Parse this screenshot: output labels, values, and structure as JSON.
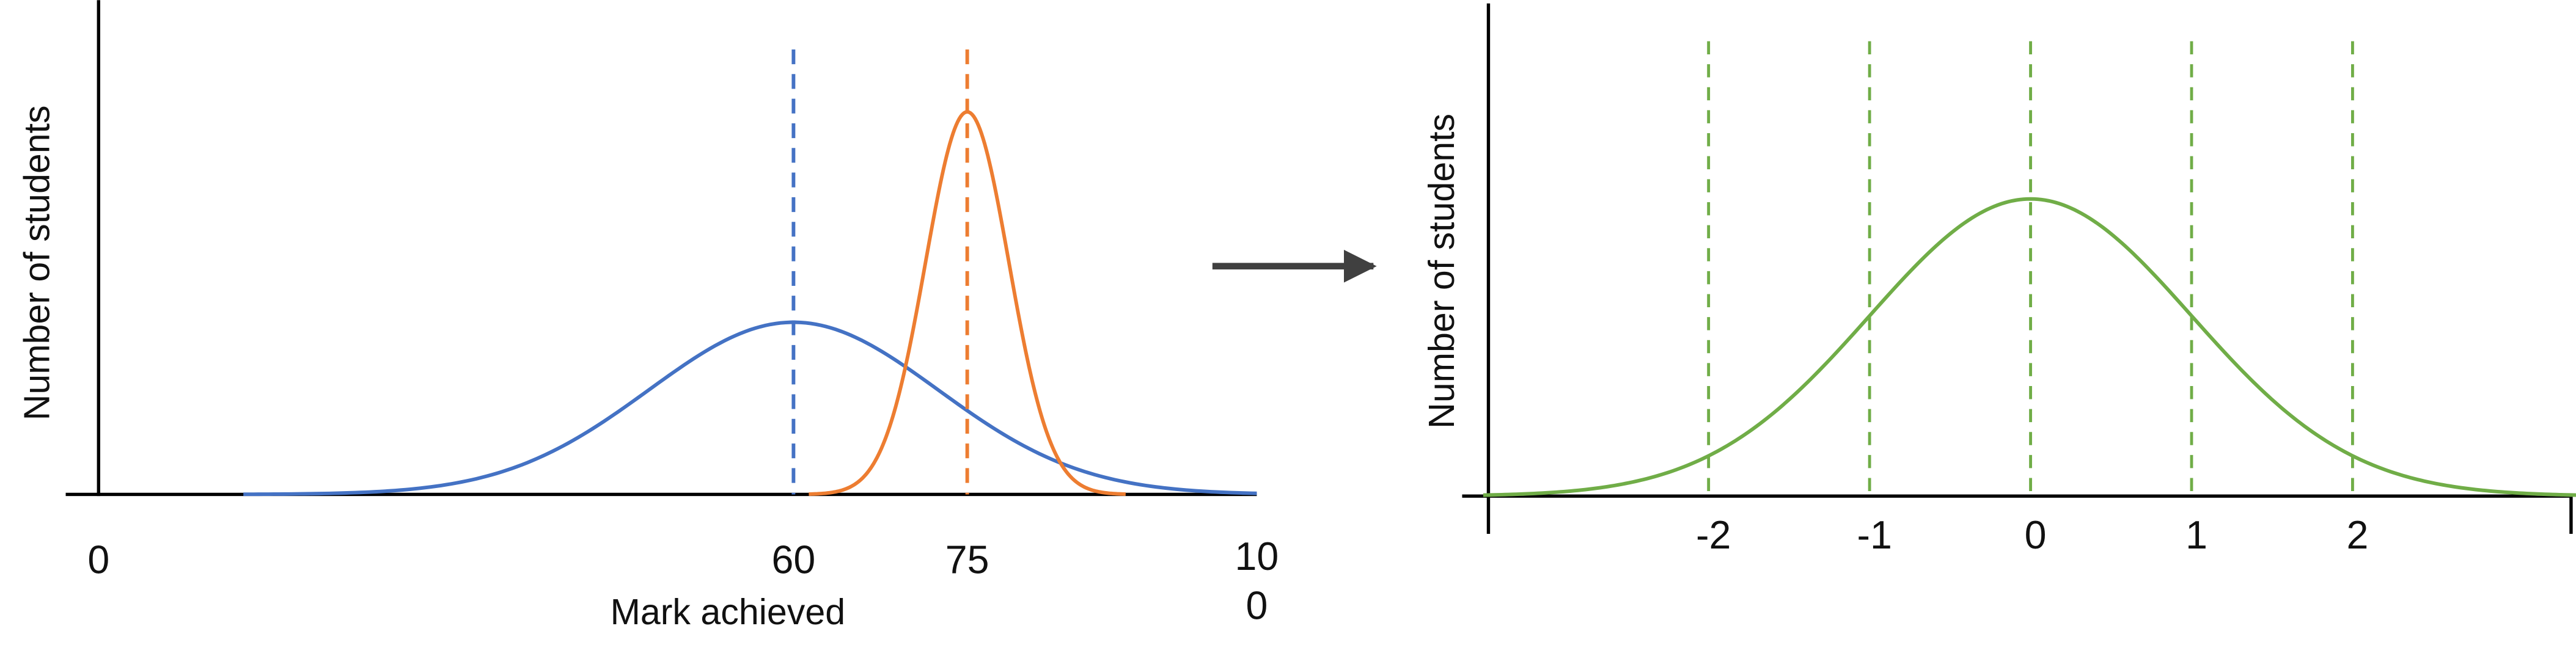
{
  "left_chart": {
    "y_label": "Number of students",
    "x_label": "Mark achieved",
    "ticks": [
      0,
      60,
      75,
      100
    ],
    "distributions": [
      {
        "color": "#4472c4",
        "mean": 60,
        "sd": 12.5,
        "peak": 0.45
      },
      {
        "color": "#ed7d31",
        "mean": 75,
        "sd": 3.6,
        "peak": 1
      }
    ]
  },
  "right_chart": {
    "y_label": "Number of students",
    "ticks": [
      -2,
      -1,
      0,
      1,
      2
    ],
    "distribution": {
      "color": "#70ad47",
      "mean": 0,
      "sd": 1,
      "peak": 0.78
    }
  }
}
